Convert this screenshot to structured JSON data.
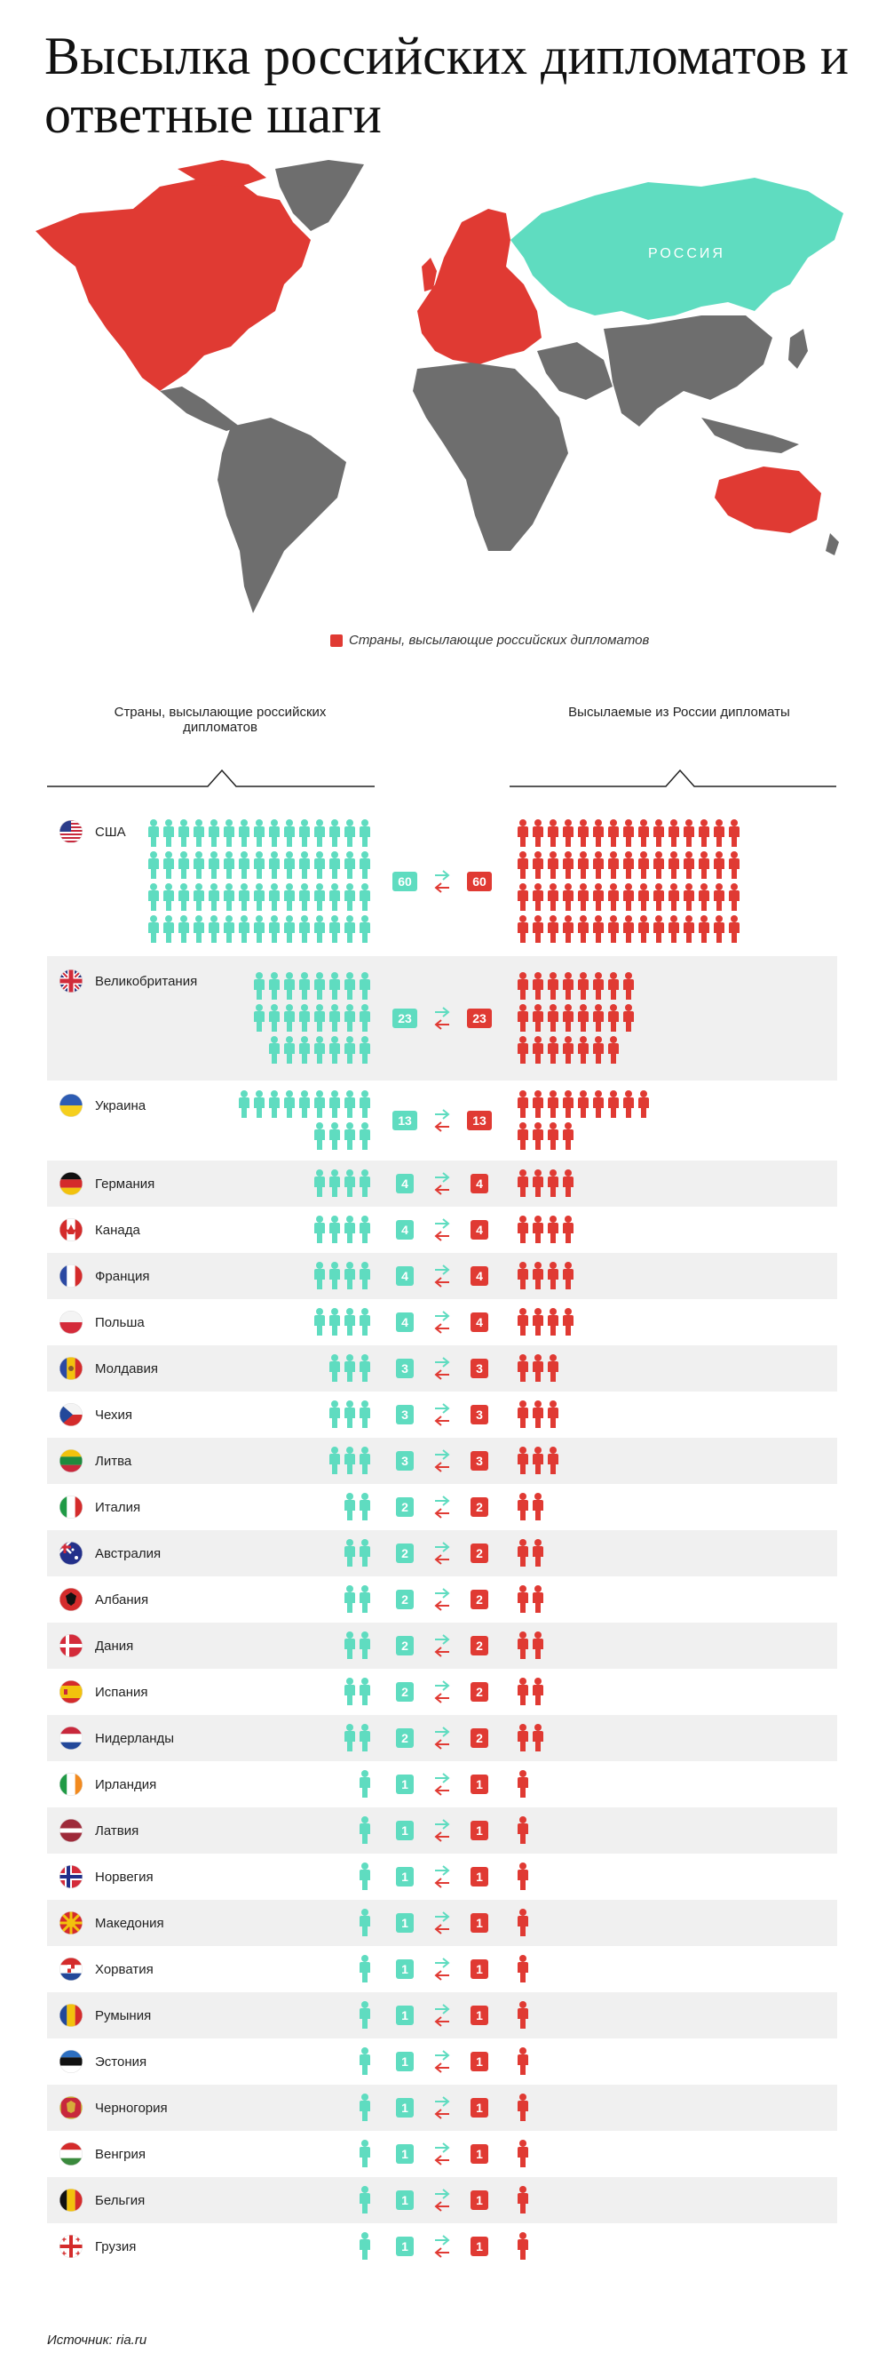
{
  "title": "Высылка российских дипломатов и ответные шаги",
  "map": {
    "russia_label": "РОССИЯ",
    "legend": "Страны, высылающие российских дипломатов",
    "colors": {
      "expelling": "#e03a33",
      "russia": "#5fdcc0",
      "other": "#6e6e6e"
    }
  },
  "columns": {
    "left": "Страны, высылающие российских дипломатов",
    "right": "Высылаемые из России дипломаты"
  },
  "chart_data": {
    "type": "table",
    "colors": {
      "expelled_russian": "#5fdcc0",
      "expelled_from_russia": "#e03a33",
      "row_alt": "#f0f0f0"
    },
    "rows": [
      {
        "country": "США",
        "flag": "us-flag",
        "expelled": 60,
        "retaliation": 60
      },
      {
        "country": "Великобритания",
        "flag": "gb-flag",
        "expelled": 23,
        "retaliation": 23
      },
      {
        "country": "Украина",
        "flag": "ua-flag",
        "expelled": 13,
        "retaliation": 13
      },
      {
        "country": "Германия",
        "flag": "de-flag",
        "expelled": 4,
        "retaliation": 4
      },
      {
        "country": "Канада",
        "flag": "ca-flag",
        "expelled": 4,
        "retaliation": 4
      },
      {
        "country": "Франция",
        "flag": "fr-flag",
        "expelled": 4,
        "retaliation": 4
      },
      {
        "country": "Польша",
        "flag": "pl-flag",
        "expelled": 4,
        "retaliation": 4
      },
      {
        "country": "Молдавия",
        "flag": "md-flag",
        "expelled": 3,
        "retaliation": 3
      },
      {
        "country": "Чехия",
        "flag": "cz-flag",
        "expelled": 3,
        "retaliation": 3
      },
      {
        "country": "Литва",
        "flag": "lt-flag",
        "expelled": 3,
        "retaliation": 3
      },
      {
        "country": "Италия",
        "flag": "it-flag",
        "expelled": 2,
        "retaliation": 2
      },
      {
        "country": "Австралия",
        "flag": "au-flag",
        "expelled": 2,
        "retaliation": 2
      },
      {
        "country": "Албания",
        "flag": "al-flag",
        "expelled": 2,
        "retaliation": 2
      },
      {
        "country": "Дания",
        "flag": "dk-flag",
        "expelled": 2,
        "retaliation": 2
      },
      {
        "country": "Испания",
        "flag": "es-flag",
        "expelled": 2,
        "retaliation": 2
      },
      {
        "country": "Нидерланды",
        "flag": "nl-flag",
        "expelled": 2,
        "retaliation": 2
      },
      {
        "country": "Ирландия",
        "flag": "ie-flag",
        "expelled": 1,
        "retaliation": 1
      },
      {
        "country": "Латвия",
        "flag": "lv-flag",
        "expelled": 1,
        "retaliation": 1
      },
      {
        "country": "Норвегия",
        "flag": "no-flag",
        "expelled": 1,
        "retaliation": 1
      },
      {
        "country": "Македония",
        "flag": "mk-flag",
        "expelled": 1,
        "retaliation": 1
      },
      {
        "country": "Хорватия",
        "flag": "hr-flag",
        "expelled": 1,
        "retaliation": 1
      },
      {
        "country": "Румыния",
        "flag": "ro-flag",
        "expelled": 1,
        "retaliation": 1
      },
      {
        "country": "Эстония",
        "flag": "ee-flag",
        "expelled": 1,
        "retaliation": 1
      },
      {
        "country": "Черногория",
        "flag": "me-flag",
        "expelled": 1,
        "retaliation": 1
      },
      {
        "country": "Венгрия",
        "flag": "hu-flag",
        "expelled": 1,
        "retaliation": 1
      },
      {
        "country": "Бельгия",
        "flag": "be-flag",
        "expelled": 1,
        "retaliation": 1
      },
      {
        "country": "Грузия",
        "flag": "ge-flag",
        "expelled": 1,
        "retaliation": 1
      }
    ]
  },
  "source": "Источник: ria.ru"
}
